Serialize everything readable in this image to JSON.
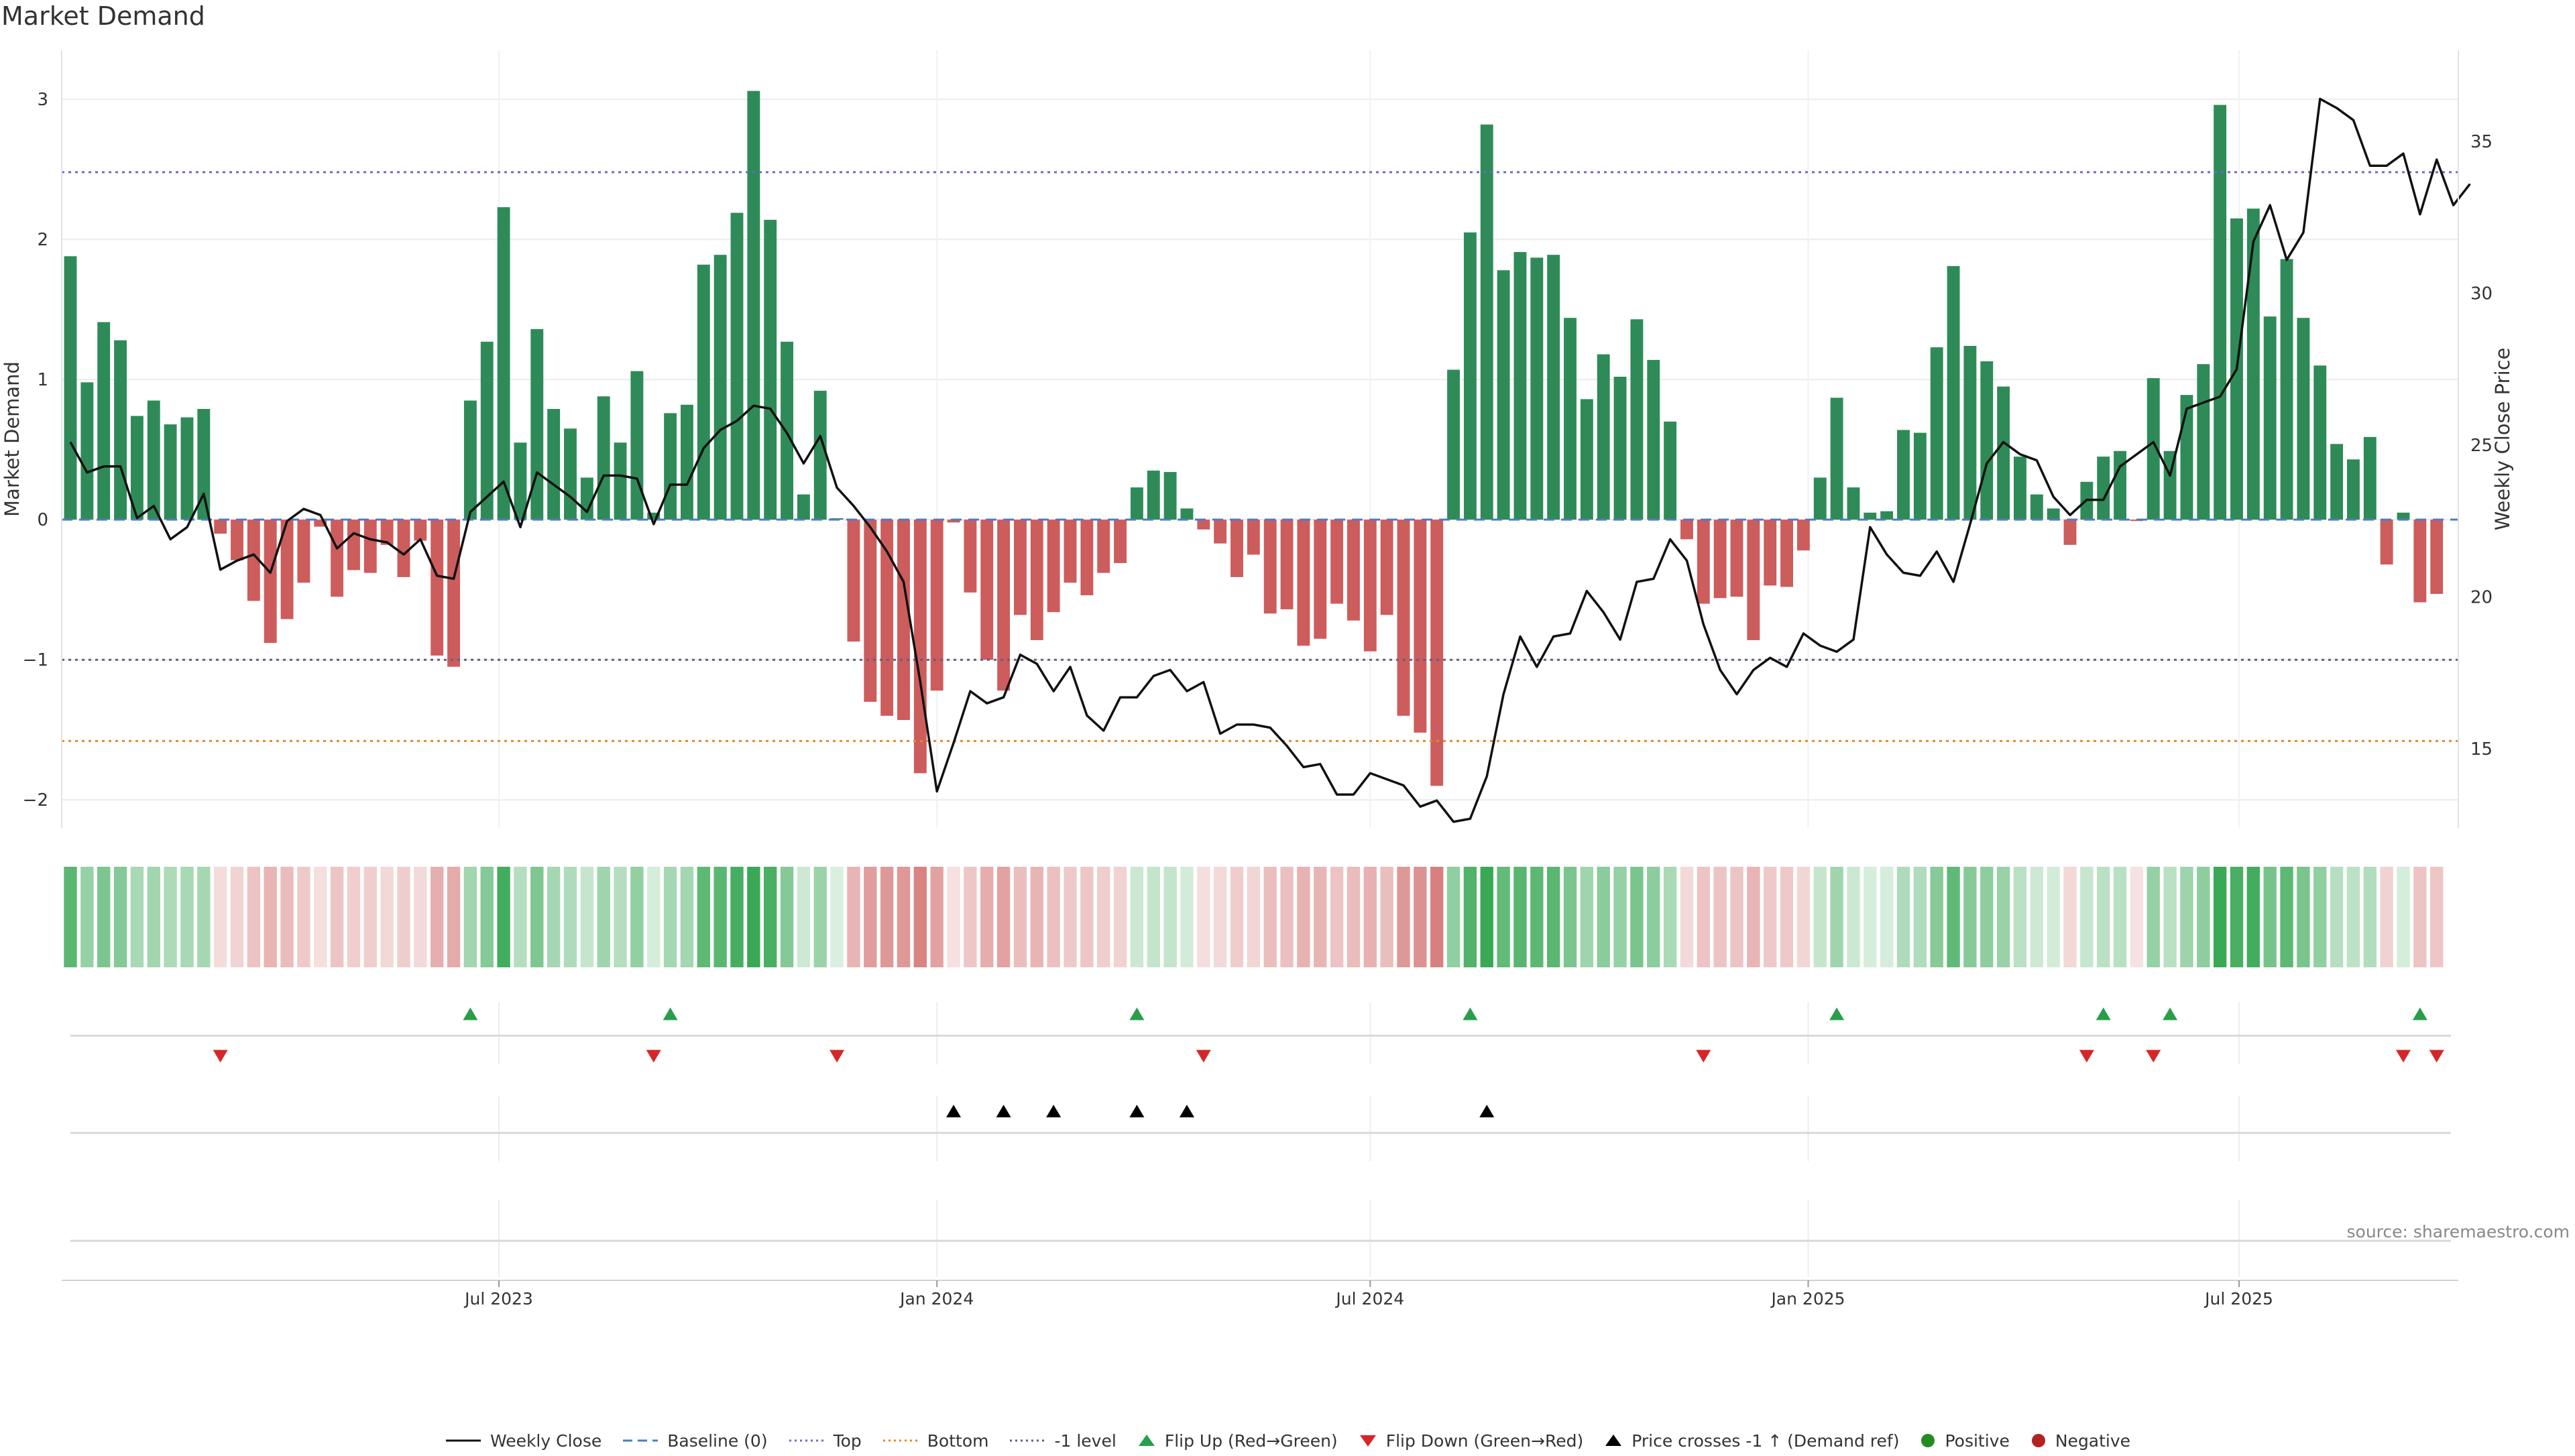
{
  "chart_data": {
    "type": "bar",
    "title": "Market Demand",
    "ylabel": "Market Demand",
    "y2label": "Weekly Close Price",
    "ylim": [
      -2.2,
      3.35
    ],
    "y2lim": [
      12.4,
      38.0
    ],
    "yticks": [
      3,
      2,
      1,
      0,
      -1,
      -2
    ],
    "ytick_labels": [
      "3",
      "2",
      "1",
      "0",
      "−1",
      "−2"
    ],
    "y2ticks": [
      35,
      30,
      25,
      20,
      15
    ],
    "y2tick_labels": [
      "35",
      "30",
      "25",
      "20",
      "15"
    ],
    "reference_lines": {
      "baseline": 0,
      "top": 2.48,
      "neg_one": -1.0,
      "bottom": -1.58
    },
    "x_start": "2023-01-02",
    "x_end": "2025-10-06",
    "xticks": [
      {
        "date": "2023-07-01",
        "label": "Jul 2023"
      },
      {
        "date": "2024-01-01",
        "label": "Jan 2024"
      },
      {
        "date": "2024-07-01",
        "label": "Jul 2024"
      },
      {
        "date": "2025-01-01",
        "label": "Jan 2025"
      },
      {
        "date": "2025-07-01",
        "label": "Jul 2025"
      }
    ],
    "demand": [
      1.88,
      0.98,
      1.41,
      1.28,
      0.74,
      0.85,
      0.68,
      0.73,
      0.79,
      -0.1,
      -0.29,
      -0.58,
      -0.88,
      -0.71,
      -0.45,
      -0.05,
      -0.55,
      -0.36,
      -0.38,
      -0.18,
      -0.41,
      -0.15,
      -0.97,
      -1.05,
      0.85,
      1.27,
      2.23,
      0.55,
      1.36,
      0.79,
      0.65,
      0.3,
      0.88,
      0.55,
      1.06,
      0.05,
      0.76,
      0.82,
      1.82,
      1.89,
      2.19,
      3.06,
      2.14,
      1.27,
      0.18,
      0.92,
      0.01,
      -0.87,
      -1.3,
      -1.4,
      -1.43,
      -1.81,
      -1.22,
      -0.02,
      -0.52,
      -1.0,
      -1.22,
      -0.68,
      -0.86,
      -0.66,
      -0.45,
      -0.54,
      -0.38,
      -0.31,
      0.23,
      0.35,
      0.34,
      0.08,
      -0.07,
      -0.17,
      -0.41,
      -0.25,
      -0.67,
      -0.64,
      -0.9,
      -0.85,
      -0.6,
      -0.72,
      -0.94,
      -0.68,
      -1.4,
      -1.52,
      -1.9,
      1.07,
      2.05,
      2.82,
      1.78,
      1.91,
      1.87,
      1.89,
      1.44,
      0.86,
      1.18,
      1.02,
      1.43,
      1.14,
      0.7,
      -0.14,
      -0.6,
      -0.56,
      -0.55,
      -0.86,
      -0.47,
      -0.48,
      -0.22,
      0.3,
      0.87,
      0.23,
      0.05,
      0.06,
      0.64,
      0.62,
      1.23,
      1.81,
      1.24,
      1.13,
      0.95,
      0.45,
      0.18,
      0.08,
      -0.18,
      0.27,
      0.45,
      0.49,
      -0.01,
      1.01,
      0.49,
      0.89,
      1.11,
      2.96,
      2.15,
      2.22,
      1.45,
      1.86,
      1.44,
      1.1,
      0.54,
      0.43,
      0.59,
      -0.32,
      0.05,
      -0.59,
      -0.53
    ],
    "weekly_close": [
      25.1,
      24.1,
      24.3,
      24.3,
      22.6,
      23.0,
      21.9,
      22.3,
      23.4,
      20.9,
      21.2,
      21.4,
      20.8,
      22.5,
      22.9,
      22.7,
      21.6,
      22.1,
      21.9,
      21.8,
      21.4,
      21.9,
      20.7,
      20.6,
      22.8,
      23.3,
      23.8,
      22.3,
      24.1,
      23.7,
      23.3,
      22.8,
      24.0,
      24.0,
      23.9,
      22.4,
      23.7,
      23.7,
      24.9,
      25.5,
      25.8,
      26.3,
      26.2,
      25.4,
      24.4,
      25.3,
      23.6,
      23.0,
      22.3,
      21.5,
      20.5,
      17.2,
      13.6,
      15.2,
      16.9,
      16.5,
      16.7,
      18.1,
      17.8,
      16.9,
      17.7,
      16.1,
      15.6,
      16.7,
      16.7,
      17.4,
      17.6,
      16.9,
      17.2,
      15.5,
      15.8,
      15.8,
      15.7,
      15.1,
      14.4,
      14.5,
      13.5,
      13.5,
      14.2,
      14.0,
      13.8,
      13.1,
      13.3,
      12.6,
      12.7,
      14.1,
      16.8,
      18.7,
      17.7,
      18.7,
      18.8,
      20.2,
      19.5,
      18.6,
      20.5,
      20.6,
      21.9,
      21.2,
      19.1,
      17.6,
      16.8,
      17.6,
      18.0,
      17.7,
      18.8,
      18.4,
      18.2,
      18.6,
      22.3,
      21.4,
      20.8,
      20.7,
      21.5,
      20.5,
      22.4,
      24.4,
      25.1,
      24.7,
      24.5,
      23.3,
      22.7,
      23.2,
      23.2,
      24.3,
      24.7,
      25.1,
      24.0,
      26.2,
      26.4,
      26.6,
      27.5,
      31.7,
      32.9,
      31.1,
      32.0,
      36.4,
      36.1,
      35.7,
      34.2,
      34.2,
      34.6,
      32.6,
      34.4,
      32.9,
      33.6
    ],
    "flip_up_weeks": [
      24,
      36,
      64,
      84,
      106,
      122,
      126,
      141
    ],
    "flip_down_weeks": [
      9,
      35,
      46,
      68,
      98,
      121,
      125,
      140,
      142
    ],
    "price_cross_weeks": [
      53,
      56,
      59,
      64,
      67,
      85
    ]
  },
  "page": {
    "title": "Market Demand",
    "source": "source: sharemaestro.com"
  },
  "legend": [
    {
      "key": "close",
      "label": "Weekly Close"
    },
    {
      "key": "baseline",
      "label": "Baseline (0)"
    },
    {
      "key": "top",
      "label": "Top"
    },
    {
      "key": "bottom",
      "label": "Bottom"
    },
    {
      "key": "neg1",
      "label": "-1 level"
    },
    {
      "key": "flipup",
      "label": "Flip Up (Red→Green)"
    },
    {
      "key": "flipdown",
      "label": "Flip Down (Green→Red)"
    },
    {
      "key": "cross",
      "label": "Price crosses -1 ↑ (Demand ref)"
    },
    {
      "key": "positive",
      "label": "Positive"
    },
    {
      "key": "negative",
      "label": "Negative"
    }
  ],
  "colors": {
    "positive": "#2e8b57",
    "negative": "#cd5c5c",
    "close": "#111111",
    "baseline": "#4a7fc1",
    "top": "#6b6bc8",
    "bottom": "#e08a2c",
    "neg1": "#5f5f8a",
    "flipup": "#2a9d4a",
    "flipdown": "#d62728",
    "cross": "#000000",
    "legend_positive": "#228b22",
    "legend_negative": "#b22222"
  }
}
